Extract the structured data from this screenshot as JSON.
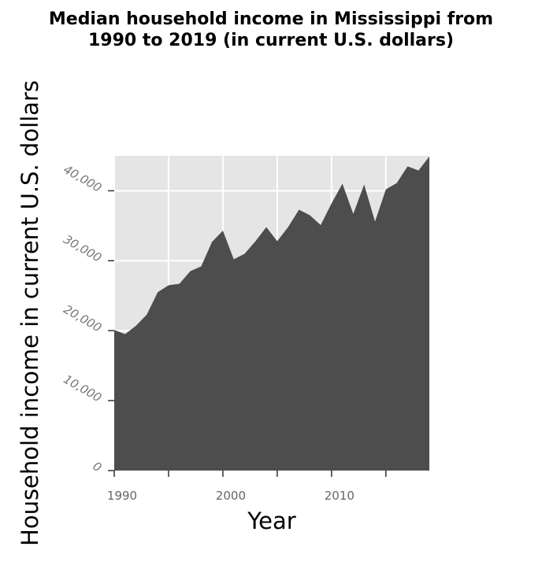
{
  "chart_data": {
    "type": "area",
    "title_lines": [
      "Median household income in Mississippi from",
      "1990 to 2019 (in current U.S. dollars)"
    ],
    "xlabel": "Year",
    "ylabel": "Household income in current U.S. dollars",
    "xlim": [
      1990,
      2019
    ],
    "ylim": [
      0,
      45000
    ],
    "x_ticks": [
      1990,
      1995,
      2000,
      2005,
      2010,
      2015
    ],
    "x_tick_labels": [
      "1990",
      "",
      "2000",
      "",
      "2010",
      ""
    ],
    "y_ticks": [
      0,
      10000,
      20000,
      30000,
      40000
    ],
    "y_tick_labels": [
      "0",
      "10,000",
      "20,000",
      "30,000",
      "40,000"
    ],
    "grid": true,
    "fill_color": "#4d4d4d",
    "background_color": "#e5e5e5",
    "series": [
      {
        "x": [
          1990,
          1991,
          1992,
          1993,
          1994,
          1995,
          1996,
          1997,
          1998,
          1999,
          2000,
          2001,
          2002,
          2003,
          2004,
          2005,
          2006,
          2007,
          2008,
          2009,
          2010,
          2011,
          2012,
          2013,
          2014,
          2015,
          2016,
          2017,
          2018,
          2019
        ],
        "y": [
          20100,
          19500,
          20700,
          22300,
          25500,
          26500,
          26700,
          28500,
          29200,
          32700,
          34300,
          30200,
          31000,
          32800,
          34800,
          32800,
          34800,
          37300,
          36500,
          35100,
          38200,
          41000,
          36700,
          40900,
          35600,
          40200,
          41100,
          43500,
          42900,
          44900
        ]
      }
    ]
  }
}
